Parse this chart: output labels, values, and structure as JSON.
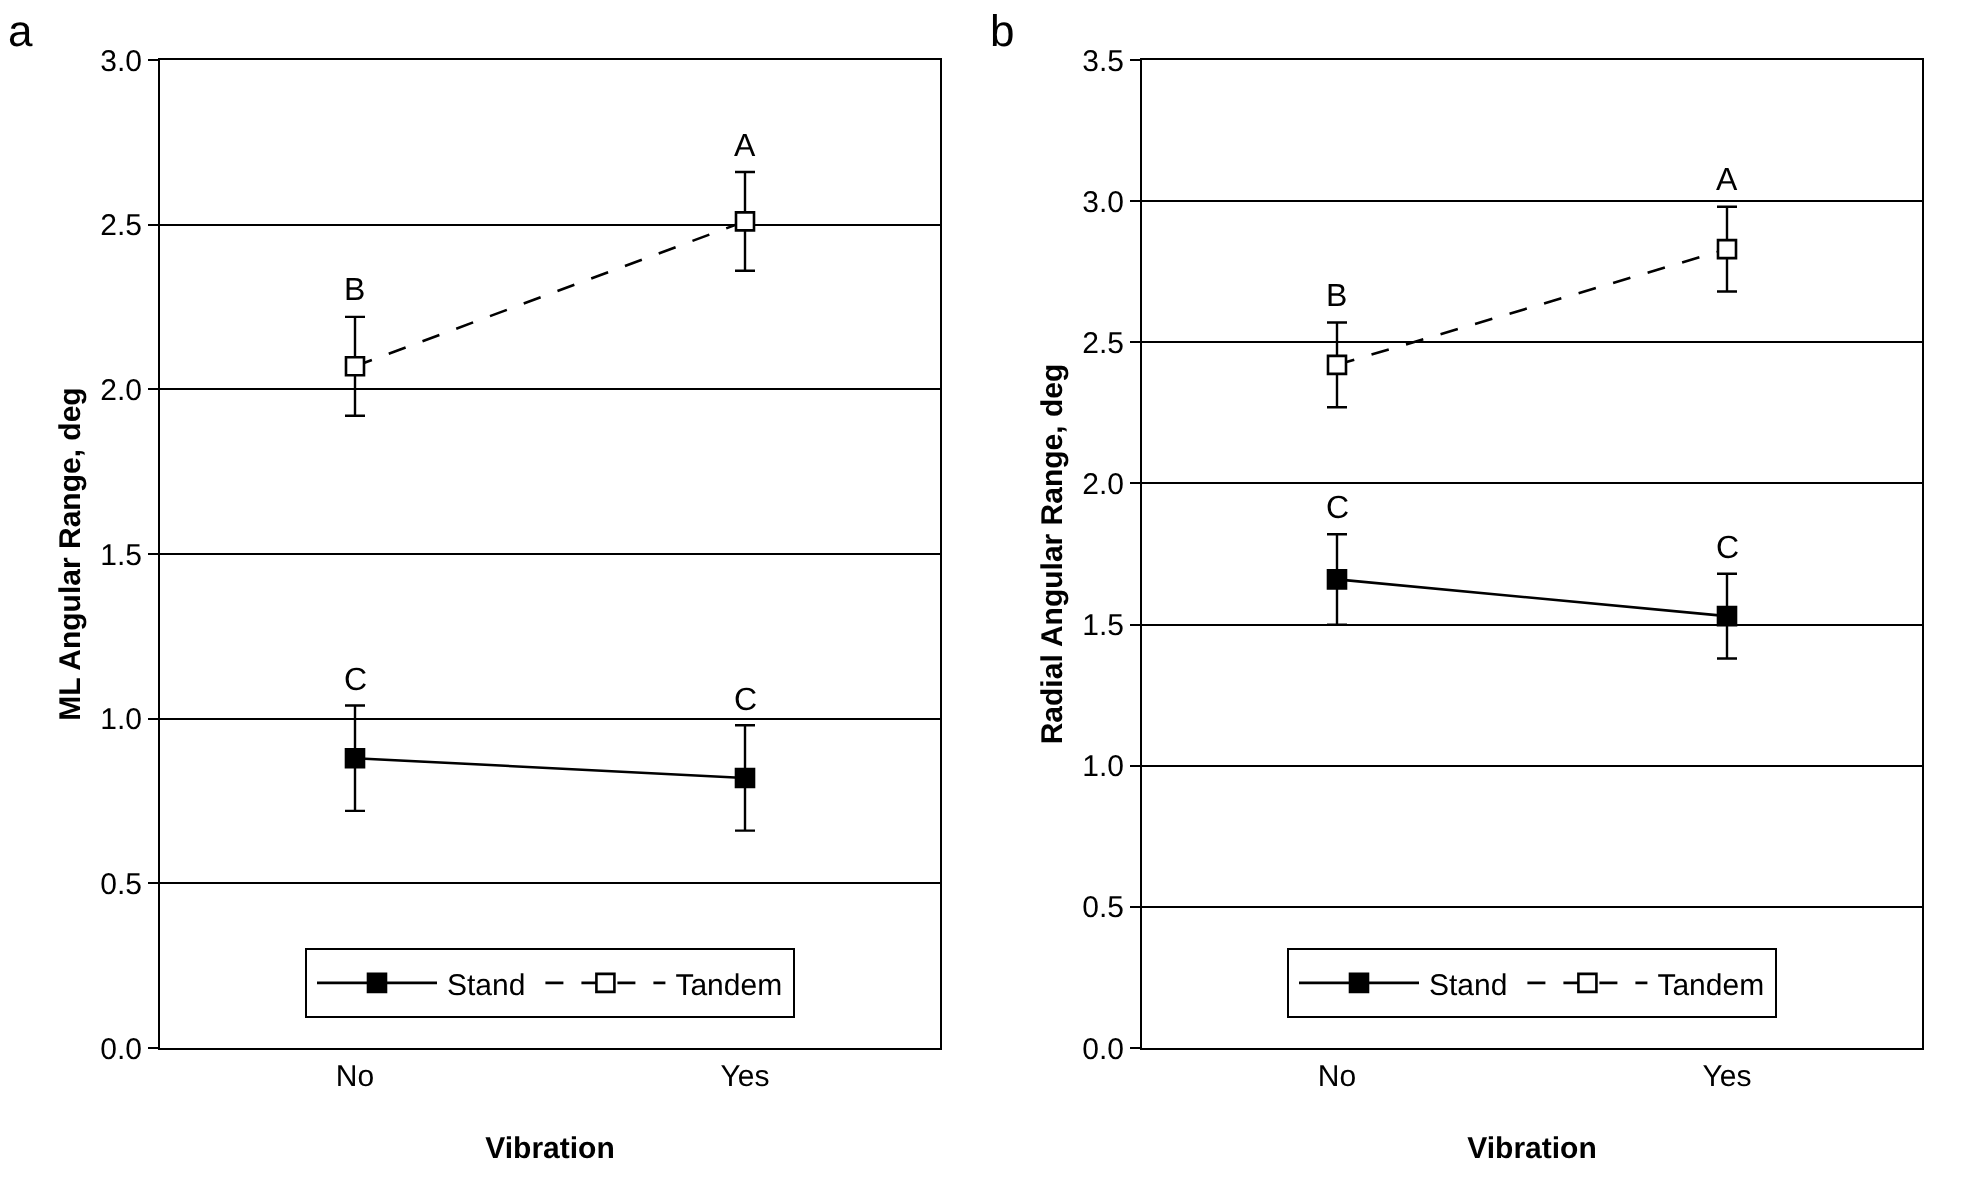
{
  "chart_data": [
    {
      "type": "line",
      "xlabel": "Vibration",
      "ylabel": "ML Angular Range, deg",
      "categories": [
        "No",
        "Yes"
      ],
      "series": [
        {
          "name": "Stand",
          "color": "#000000",
          "values": [
            0.88,
            0.82
          ],
          "errors": [
            0.16,
            0.16
          ],
          "line_style": "solid"
        },
        {
          "name": "Tandem",
          "color": "#000000",
          "values": [
            2.07,
            2.51
          ],
          "errors": [
            0.15,
            0.15
          ],
          "line_style": "dashed"
        }
      ],
      "ylim": [
        0,
        3
      ],
      "yticks": [
        {
          "value": 0,
          "label": "0.0"
        },
        {
          "value": 0.5,
          "label": "0.5"
        },
        {
          "value": 1,
          "label": "1.0"
        },
        {
          "value": 1.5,
          "label": "1.5"
        },
        {
          "value": 2,
          "label": "2.0"
        },
        {
          "value": 2.5,
          "label": "2.5"
        },
        {
          "value": 3,
          "label": "3.0"
        }
      ],
      "grid": "y",
      "legend": "bottom",
      "marker": "square",
      "annotations": [
        "a",
        {
          "text": "C",
          "x": "No",
          "y": 1.04
        },
        {
          "text": "C",
          "x": "Yes",
          "y": 0.98
        },
        {
          "text": "B",
          "x": "No",
          "y": 2.22
        },
        {
          "text": "A",
          "x": "Yes",
          "y": 2.66
        }
      ]
    },
    {
      "type": "line",
      "xlabel": "Vibration",
      "ylabel": "Radial Angular Range, deg",
      "categories": [
        "No",
        "Yes"
      ],
      "series": [
        {
          "name": "Stand",
          "color": "#000000",
          "values": [
            1.66,
            1.53
          ],
          "errors": [
            0.16,
            0.15
          ],
          "line_style": "solid"
        },
        {
          "name": "Tandem",
          "color": "#000000",
          "values": [
            2.42,
            2.83
          ],
          "errors": [
            0.15,
            0.15
          ],
          "line_style": "dashed"
        }
      ],
      "ylim": [
        0,
        3.5
      ],
      "yticks": [
        {
          "value": 0,
          "label": "0.0"
        },
        {
          "value": 0.5,
          "label": "0.5"
        },
        {
          "value": 1,
          "label": "1.0"
        },
        {
          "value": 1.5,
          "label": "1.5"
        },
        {
          "value": 2,
          "label": "2.0"
        },
        {
          "value": 2.5,
          "label": "2.5"
        },
        {
          "value": 3,
          "label": "3.0"
        },
        {
          "value": 3.5,
          "label": "3.5"
        }
      ],
      "grid": "y",
      "legend": "bottom",
      "marker": "square",
      "annotations": [
        "b",
        {
          "text": "C",
          "x": "No",
          "y": 1.82
        },
        {
          "text": "C",
          "x": "Yes",
          "y": 1.68
        },
        {
          "text": "B",
          "x": "No",
          "y": 2.57
        },
        {
          "text": "A",
          "x": "Yes",
          "y": 2.98
        }
      ]
    }
  ]
}
